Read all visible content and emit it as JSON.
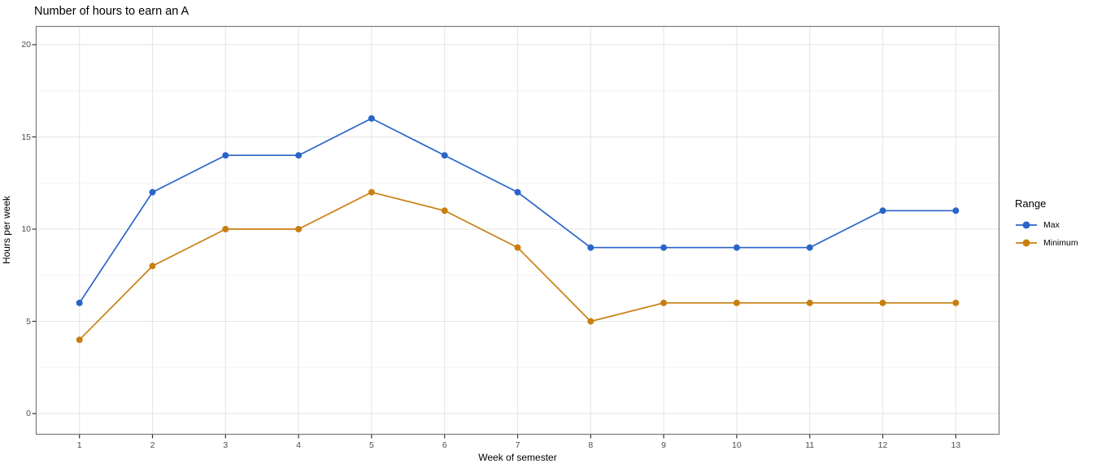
{
  "chart_data": {
    "type": "line",
    "title": "Number of hours to earn an A",
    "xlabel": "Week of semester",
    "ylabel": "Hours per week",
    "x": [
      1,
      2,
      3,
      4,
      5,
      6,
      7,
      8,
      9,
      10,
      11,
      12,
      13
    ],
    "series": [
      {
        "name": "Max",
        "color": "#2a64c8",
        "values": [
          6,
          12,
          14,
          14,
          16,
          14,
          12,
          9,
          9,
          9,
          9,
          11,
          11
        ]
      },
      {
        "name": "Minimum",
        "color": "#c87f10",
        "values": [
          4,
          8,
          10,
          10,
          12,
          11,
          9,
          5,
          6,
          6,
          6,
          6,
          6
        ]
      }
    ],
    "y_ticks": [
      0,
      5,
      10,
      15,
      20
    ],
    "y_minor_ticks": [
      2.5,
      7.5,
      12.5,
      17.5
    ],
    "ylim": [
      -1.15,
      21.0
    ],
    "legend_title": "Range",
    "legend_position": "right",
    "grid": "on",
    "marker": "circle",
    "colors": {
      "grid_major": "#e6e6e6",
      "grid_minor": "#f3f3f3",
      "panel_border": "#7a7a7a",
      "tick_mark": "#333333",
      "tick_label": "#4d4d4d",
      "text": "#000000",
      "background": "#ffffff"
    }
  }
}
